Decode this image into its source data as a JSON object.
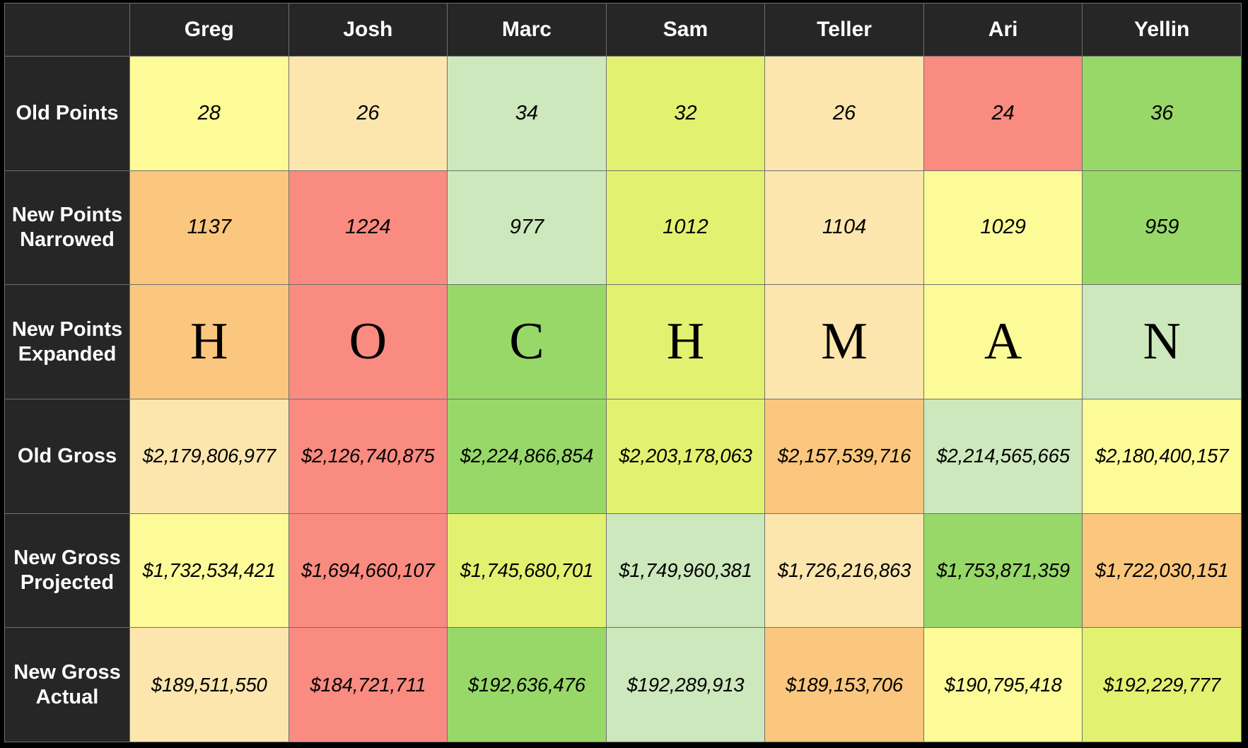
{
  "chart_data": {
    "type": "table",
    "columns": [
      "Greg",
      "Josh",
      "Marc",
      "Sam",
      "Teller",
      "Ari",
      "Yellin"
    ],
    "rows": [
      {
        "label": "Old Points",
        "kind": "number",
        "values": [
          "28",
          "26",
          "34",
          "32",
          "26",
          "24",
          "36"
        ],
        "colors": [
          "#fdfb98",
          "#fce6ae",
          "#cde8bc",
          "#e3f170",
          "#fce6ae",
          "#f98b81",
          "#98d868"
        ]
      },
      {
        "label": "New Points\nNarrowed",
        "kind": "number",
        "values": [
          "1137",
          "1224",
          "977",
          "1012",
          "1104",
          "1029",
          "959"
        ],
        "colors": [
          "#fbc77e",
          "#f98b81",
          "#cde8bc",
          "#e3f170",
          "#fce6ae",
          "#fdfb98",
          "#98d868"
        ]
      },
      {
        "label": "New Points\nExpanded",
        "kind": "letter",
        "values": [
          "H",
          "O",
          "C",
          "H",
          "M",
          "A",
          "N"
        ],
        "colors": [
          "#fbc77e",
          "#f98b81",
          "#98d868",
          "#e3f170",
          "#fce6ae",
          "#fdfb98",
          "#cde8bc"
        ]
      },
      {
        "label": "Old Gross",
        "kind": "money",
        "values": [
          "$2,179,806,977",
          "$2,126,740,875",
          "$2,224,866,854",
          "$2,203,178,063",
          "$2,157,539,716",
          "$2,214,565,665",
          "$2,180,400,157"
        ],
        "colors": [
          "#fce6ae",
          "#f98b81",
          "#98d868",
          "#e3f170",
          "#fbc77e",
          "#cde8bc",
          "#fdfb98"
        ]
      },
      {
        "label": "New Gross\nProjected",
        "kind": "money",
        "values": [
          "$1,732,534,421",
          "$1,694,660,107",
          "$1,745,680,701",
          "$1,749,960,381",
          "$1,726,216,863",
          "$1,753,871,359",
          "$1,722,030,151"
        ],
        "colors": [
          "#fdfb98",
          "#f98b81",
          "#e3f170",
          "#cde8bc",
          "#fce6ae",
          "#98d868",
          "#fbc77e"
        ]
      },
      {
        "label": "New Gross\nActual",
        "kind": "money",
        "values": [
          "$189,511,550",
          "$184,721,711",
          "$192,636,476",
          "$192,289,913",
          "$189,153,706",
          "$190,795,418",
          "$192,229,777"
        ],
        "colors": [
          "#fce6ae",
          "#f98b81",
          "#98d868",
          "#cde8bc",
          "#fbc77e",
          "#fdfb98",
          "#e3f170"
        ]
      }
    ]
  }
}
